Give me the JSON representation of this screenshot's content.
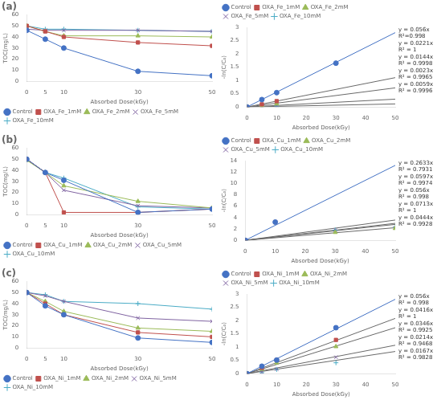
{
  "chart_data": [
    {
      "type": "line",
      "title": "(a)",
      "xlabel": "Absorbed Dose(kGy)",
      "ylabel": "TOC(mg/L)",
      "x": [
        0,
        5,
        10,
        30,
        50
      ],
      "series": [
        {
          "name": "Control",
          "color": "#4472C4",
          "marker": "circle",
          "values": [
            46,
            38,
            30,
            9,
            5
          ]
        },
        {
          "name": "OXA_Fe_1mM",
          "color": "#C0504D",
          "marker": "square",
          "values": [
            50,
            45,
            40,
            35,
            32
          ]
        },
        {
          "name": "OXA_Fe_2mM",
          "color": "#9BBB59",
          "marker": "triangle",
          "values": [
            50,
            45,
            41,
            41,
            40
          ]
        },
        {
          "name": "OXA_Fe_5mM",
          "color": "#8064A2",
          "marker": "x",
          "values": [
            47,
            46,
            46,
            46,
            45
          ]
        },
        {
          "name": "OXA_Fe_10mM",
          "color": "#4BACC6",
          "marker": "plus",
          "values": [
            50,
            47,
            47,
            46,
            45
          ]
        }
      ],
      "xlim": [
        0,
        50
      ],
      "xticks": [
        0,
        5,
        10,
        30,
        50
      ],
      "ylim": [
        0,
        60
      ],
      "yticks": [
        0,
        10,
        20,
        30,
        40,
        50,
        60
      ],
      "grid": false,
      "legend": "lower left"
    },
    {
      "type": "scatter",
      "xlabel": "Absorbed Dose(kGy)",
      "ylabel": "-ln(C/C₀)",
      "series": [
        {
          "type": "scatter",
          "name": "Control",
          "color": "#4472C4",
          "marker": "circle",
          "x": [
            0,
            5,
            10,
            30
          ],
          "values": [
            0,
            0.28,
            0.54,
            1.65
          ]
        },
        {
          "type": "line",
          "color": "#4472C4",
          "x": [
            0,
            50
          ],
          "values": [
            0,
            2.8
          ]
        },
        {
          "type": "scatter",
          "name": "OXA_Fe_1mM",
          "color": "#C0504D",
          "marker": "square",
          "x": [
            0,
            5,
            10
          ],
          "values": [
            0,
            0.1,
            0.22
          ]
        },
        {
          "type": "line",
          "color": "dimgray",
          "x": [
            0,
            50
          ],
          "values": [
            0,
            1.105
          ]
        },
        {
          "type": "scatter",
          "name": "OXA_Fe_2mM",
          "color": "#9BBB59",
          "marker": "triangle",
          "x": [
            0,
            5,
            10
          ],
          "values": [
            0,
            0.05,
            0.12
          ]
        },
        {
          "type": "line",
          "color": "dimgray",
          "x": [
            0,
            50
          ],
          "values": [
            0,
            0.72
          ]
        },
        {
          "type": "scatter",
          "name": "OXA_Fe_5mM",
          "color": "#8064A2",
          "marker": "x",
          "x": [
            0,
            5,
            10
          ],
          "values": [
            0,
            0.02,
            0.045
          ]
        },
        {
          "type": "line",
          "color": "dimgray",
          "x": [
            0,
            50
          ],
          "values": [
            0,
            0.115
          ]
        },
        {
          "type": "scatter",
          "name": "OXA_Fe_10mM",
          "color": "#4BACC6",
          "marker": "plus",
          "x": [
            0,
            5,
            10
          ],
          "values": [
            0,
            0.015,
            0.035
          ]
        },
        {
          "type": "line",
          "color": "dimgray",
          "x": [
            0,
            50
          ],
          "values": [
            0,
            0.295
          ]
        }
      ],
      "annotations": [
        "y = 0.056x\nR²=0.998",
        "y = 0.0221x\nR² = 1",
        "y = 0.0144x\nR² = 0.9998",
        "y = 0.0023x\nR² = 0.9965",
        "y = 0.0059x\nR² = 0.9996"
      ],
      "xlim": [
        0,
        50
      ],
      "xticks": [
        0,
        10,
        20,
        30,
        40,
        50
      ],
      "ylim": [
        0,
        3
      ],
      "yticks": [
        0,
        0.5,
        1.0,
        1.5,
        2.0,
        2.5,
        3.0
      ],
      "grid": false,
      "legend": "upper left"
    },
    {
      "type": "line",
      "title": "(b)",
      "xlabel": "Absorbed Dose(kGy)",
      "ylabel": "TOC(mg/L)",
      "x": [
        0,
        5,
        10,
        30,
        50
      ],
      "series": [
        {
          "name": "Control",
          "color": "#4472C4",
          "marker": "circle",
          "values": [
            50,
            38,
            31,
            2,
            5
          ]
        },
        {
          "name": "OXA_Cu_1mM",
          "color": "#C0504D",
          "marker": "square",
          "values": [
            50,
            38,
            2,
            2,
            5
          ]
        },
        {
          "name": "OXA_Cu_2mM",
          "color": "#9BBB59",
          "marker": "triangle",
          "values": [
            49,
            38,
            26,
            12,
            6
          ]
        },
        {
          "name": "OXA_Cu_5mM",
          "color": "#8064A2",
          "marker": "x",
          "values": [
            50,
            38,
            22,
            8,
            6
          ]
        },
        {
          "name": "OXA_Cu_10mM",
          "color": "#4BACC6",
          "marker": "plus",
          "values": [
            50,
            38,
            33,
            7,
            5
          ]
        }
      ],
      "xlim": [
        0,
        50
      ],
      "xticks": [
        0,
        5,
        10,
        30,
        50
      ],
      "ylim": [
        0,
        60
      ],
      "yticks": [
        0,
        10,
        20,
        30,
        40,
        50,
        60
      ],
      "grid": false,
      "legend": "lower left"
    },
    {
      "type": "scatter",
      "xlabel": "Absorbed Dose(kGy)",
      "ylabel": "-ln(C/C₀)",
      "series": [
        {
          "type": "scatter",
          "name": "Control",
          "color": "#4472C4",
          "marker": "circle",
          "x": [
            0,
            10
          ],
          "values": [
            0,
            3.2
          ]
        },
        {
          "type": "line",
          "color": "#4472C4",
          "x": [
            0,
            50
          ],
          "values": [
            0,
            13.165
          ]
        },
        {
          "type": "scatter",
          "name": "OXA_Cu_1mM",
          "color": "#C0504D",
          "marker": "square",
          "x": [
            0,
            10
          ],
          "values": [
            0,
            3.2
          ]
        },
        {
          "type": "line",
          "color": "dimgray",
          "x": [
            0,
            50
          ],
          "values": [
            0,
            2.985
          ]
        },
        {
          "type": "scatter",
          "name": "OXA_Cu_2mM",
          "color": "#9BBB59",
          "marker": "triangle",
          "x": [
            0,
            30,
            50
          ],
          "values": [
            0,
            1.4,
            2.1
          ]
        },
        {
          "type": "line",
          "color": "dimgray",
          "x": [
            0,
            50
          ],
          "values": [
            0,
            2.8
          ]
        },
        {
          "type": "scatter",
          "name": "OXA_Cu_5mM",
          "color": "#8064A2",
          "marker": "x",
          "x": [
            0,
            30,
            50
          ],
          "values": [
            0,
            1.8,
            2.2
          ]
        },
        {
          "type": "line",
          "color": "dimgray",
          "x": [
            0,
            50
          ],
          "values": [
            0,
            3.565
          ]
        },
        {
          "type": "scatter",
          "name": "OXA_Cu_10mM",
          "color": "#4BACC6",
          "marker": "plus",
          "x": [
            0,
            30,
            50
          ],
          "values": [
            0,
            1.8,
            2.3
          ]
        },
        {
          "type": "line",
          "color": "dimgray",
          "x": [
            0,
            50
          ],
          "values": [
            0,
            2.22
          ]
        }
      ],
      "annotations": [
        "y = 0.2633x\nR² = 0.7931",
        "y = 0.0597x\nR² = 0.9974",
        "y = 0.056x\nR² = 0.998",
        "y = 0.0713x\nR² = 1",
        "y = 0.0444x\nR² = 0.9928"
      ],
      "xlim": [
        0,
        50
      ],
      "xticks": [
        0,
        10,
        20,
        30,
        40,
        50
      ],
      "ylim": [
        0,
        14
      ],
      "yticks": [
        0,
        2,
        4,
        6,
        8,
        10,
        12,
        14
      ],
      "grid": false,
      "legend": "upper left"
    },
    {
      "type": "line",
      "title": "(c)",
      "xlabel": "Absorbed Dose(kGy)",
      "ylabel": "TOC(mg/L)",
      "x": [
        0,
        5,
        10,
        30,
        50
      ],
      "series": [
        {
          "name": "Control",
          "color": "#4472C4",
          "marker": "circle",
          "values": [
            50,
            38,
            30,
            9,
            5
          ]
        },
        {
          "name": "OXA_Ni_1mM",
          "color": "#C0504D",
          "marker": "square",
          "values": [
            50,
            40,
            30,
            14,
            10
          ]
        },
        {
          "name": "OXA_Ni_2mM",
          "color": "#9BBB59",
          "marker": "triangle",
          "values": [
            50,
            42,
            33,
            18,
            15
          ]
        },
        {
          "name": "OXA_Ni_5mM",
          "color": "#8064A2",
          "marker": "x",
          "values": [
            50,
            47,
            42,
            27,
            24
          ]
        },
        {
          "name": "OXA_Ni_10mM",
          "color": "#4BACC6",
          "marker": "plus",
          "values": [
            50,
            48,
            42,
            40,
            35
          ]
        }
      ],
      "xlim": [
        0,
        50
      ],
      "xticks": [
        0,
        5,
        10,
        30,
        50
      ],
      "ylim": [
        0,
        60
      ],
      "yticks": [
        0,
        10,
        20,
        30,
        40,
        50,
        60
      ],
      "grid": false,
      "legend": "lower left"
    },
    {
      "type": "scatter",
      "xlabel": "Absorbed Dose(kGy)",
      "ylabel": "-ln(C/C₀)",
      "series": [
        {
          "type": "scatter",
          "name": "Control",
          "color": "#4472C4",
          "marker": "circle",
          "x": [
            0,
            5,
            10,
            30
          ],
          "values": [
            0,
            0.28,
            0.51,
            1.73
          ]
        },
        {
          "type": "line",
          "color": "#4472C4",
          "x": [
            0,
            50
          ],
          "values": [
            0,
            2.8
          ]
        },
        {
          "type": "scatter",
          "name": "OXA_Ni_1mM",
          "color": "#C0504D",
          "marker": "square",
          "x": [
            0,
            5,
            10,
            30
          ],
          "values": [
            0,
            0.22,
            0.51,
            1.27
          ]
        },
        {
          "type": "line",
          "color": "dimgray",
          "x": [
            0,
            50
          ],
          "values": [
            0,
            2.08
          ]
        },
        {
          "type": "scatter",
          "name": "OXA_Ni_2mM",
          "color": "#9BBB59",
          "marker": "triangle",
          "x": [
            0,
            5,
            10,
            30
          ],
          "values": [
            0,
            0.17,
            0.41,
            1.02
          ]
        },
        {
          "type": "line",
          "color": "dimgray",
          "x": [
            0,
            50
          ],
          "values": [
            0,
            1.73
          ]
        },
        {
          "type": "scatter",
          "name": "OXA_Ni_5mM",
          "color": "#8064A2",
          "marker": "x",
          "x": [
            0,
            5,
            10,
            30
          ],
          "values": [
            0,
            0.06,
            0.17,
            0.62
          ]
        },
        {
          "type": "line",
          "color": "dimgray",
          "x": [
            0,
            50
          ],
          "values": [
            0,
            1.07
          ]
        },
        {
          "type": "scatter",
          "name": "OXA_Ni_10mM",
          "color": "#4BACC6",
          "marker": "plus",
          "x": [
            0,
            5,
            10,
            30
          ],
          "values": [
            0,
            0.04,
            0.16,
            0.41
          ]
        },
        {
          "type": "line",
          "color": "dimgray",
          "x": [
            0,
            50
          ],
          "values": [
            0,
            0.835
          ]
        }
      ],
      "annotations": [
        "y = 0.056x\nR² = 0.998",
        "y = 0.0416x\nR² = 1",
        "y = 0.0346x\nR² = 0.9925",
        "y = 0.0214x\nR² = 0.9468",
        "y = 0.0167x\nR² = 0.9828"
      ],
      "xlim": [
        0,
        50
      ],
      "xticks": [
        0,
        10,
        20,
        30,
        40,
        50
      ],
      "ylim": [
        0,
        3
      ],
      "yticks": [
        0,
        0.5,
        1.0,
        1.5,
        2.0,
        2.5,
        3.0
      ],
      "grid": false,
      "legend": "upper left"
    }
  ]
}
